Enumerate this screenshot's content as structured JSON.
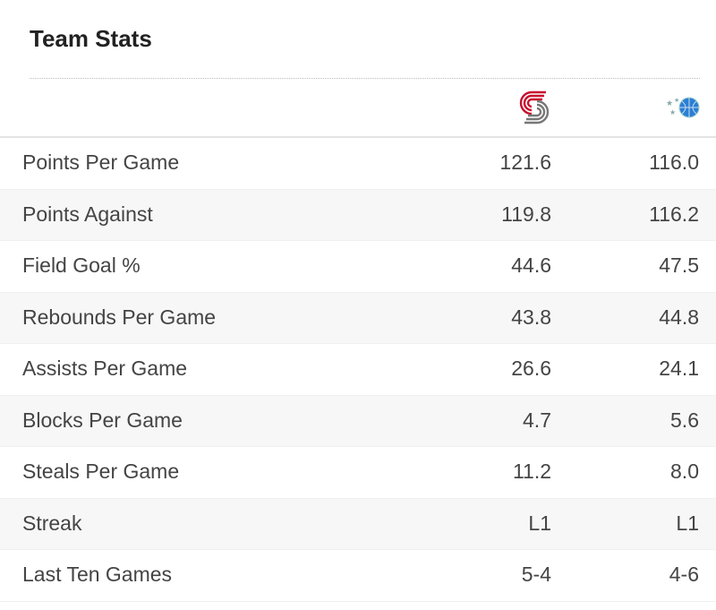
{
  "title": "Team Stats",
  "teams": [
    {
      "logo": "portland-trail-blazers-logo",
      "color": "#c8102e"
    },
    {
      "logo": "orlando-magic-logo",
      "color": "#0077c0"
    }
  ],
  "rows": [
    {
      "label": "Points Per Game",
      "team1": "121.6",
      "team2": "116.0"
    },
    {
      "label": "Points Against",
      "team1": "119.8",
      "team2": "116.2"
    },
    {
      "label": "Field Goal %",
      "team1": "44.6",
      "team2": "47.5"
    },
    {
      "label": "Rebounds Per Game",
      "team1": "43.8",
      "team2": "44.8"
    },
    {
      "label": "Assists Per Game",
      "team1": "26.6",
      "team2": "24.1"
    },
    {
      "label": "Blocks Per Game",
      "team1": "4.7",
      "team2": "5.6"
    },
    {
      "label": "Steals Per Game",
      "team1": "11.2",
      "team2": "8.0"
    },
    {
      "label": "Streak",
      "team1": "L1",
      "team2": "L1"
    },
    {
      "label": "Last Ten Games",
      "team1": "5-4",
      "team2": "4-6"
    }
  ]
}
